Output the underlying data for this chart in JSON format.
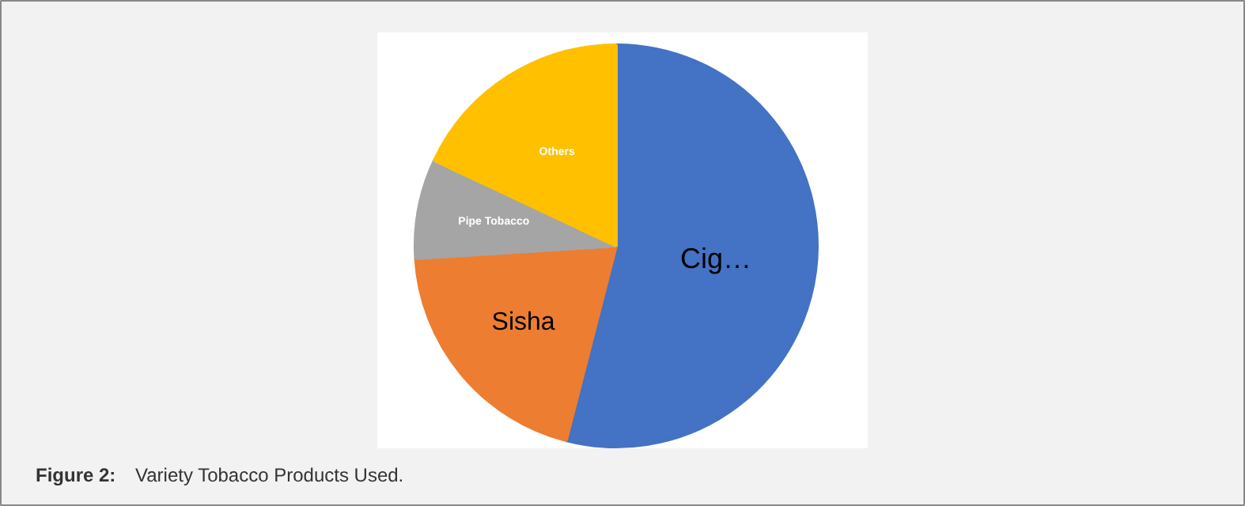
{
  "chart_data": {
    "type": "pie",
    "title": "Figure 2: Variety Tobacco Products Used.",
    "categories": [
      "Cig…",
      "Sisha",
      "Pipe Tobacco",
      "Others"
    ],
    "values": [
      54,
      20,
      8,
      18
    ],
    "colors": [
      "#4472c4",
      "#ed7d31",
      "#a5a5a5",
      "#ffc000"
    ]
  }
}
